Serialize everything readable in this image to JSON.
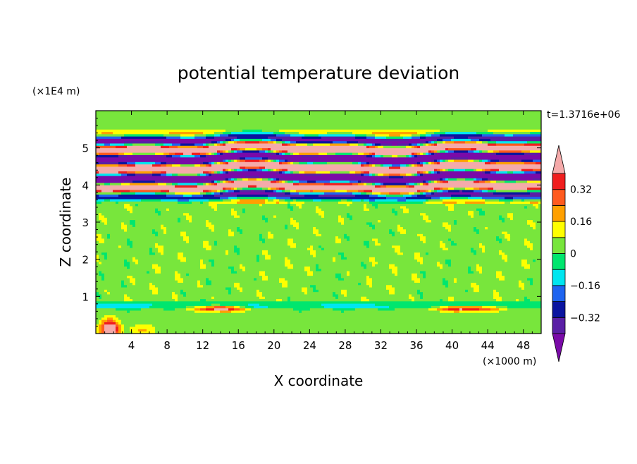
{
  "chart_data": {
    "type": "heatmap",
    "title": "potential temperature deviation",
    "xlabel": "X coordinate",
    "ylabel": "Z coordinate",
    "x_unit_label": "(×1000 m)",
    "y_unit_label": "(×1E4 m)",
    "time_label": "t=1.3716e+06",
    "xlim": [
      0,
      50
    ],
    "ylim": [
      0,
      6
    ],
    "x_ticks": [
      4,
      8,
      12,
      16,
      20,
      24,
      28,
      32,
      36,
      40,
      44,
      48
    ],
    "y_ticks": [
      1,
      2,
      3,
      4,
      5
    ],
    "colorbar": {
      "levels": [
        -0.4,
        -0.32,
        -0.24,
        -0.16,
        -0.08,
        0,
        0.08,
        0.16,
        0.24,
        0.32,
        0.4
      ],
      "tick_labels": [
        {
          "value": 0.32,
          "label": "0.32"
        },
        {
          "value": 0.16,
          "label": "0.16"
        },
        {
          "value": 0,
          "label": "0"
        },
        {
          "value": -0.16,
          "label": "−0.16"
        },
        {
          "value": -0.32,
          "label": "−0.32"
        }
      ],
      "colors": [
        "#7a0aa8",
        "#5a1fa6",
        "#0a14a0",
        "#1e64f0",
        "#00e6f0",
        "#00e66e",
        "#78e63c",
        "#ffff00",
        "#ffa000",
        "#ff5a1e",
        "#f01e1e",
        "#f5aaaa"
      ],
      "under_color": "#7a0aa8",
      "over_color": "#f5aaaa"
    },
    "bands": [
      {
        "z_range": [
          0,
          0.8
        ],
        "description": "near-surface layer, near zero with cyan/blue strip at top and warm patches near x=2, 12–16, 38–44"
      },
      {
        "z_range": [
          0.8,
          3.6
        ],
        "description": "mid troposphere, small deviations (~0 to 0.08)"
      },
      {
        "z_range": [
          3.6,
          5.4
        ],
        "description": "upper layer with strong alternating positive and negative stripes (|dev| > 0.4)"
      },
      {
        "z_range": [
          5.4,
          6
        ],
        "description": "top layer, small deviations"
      }
    ]
  }
}
